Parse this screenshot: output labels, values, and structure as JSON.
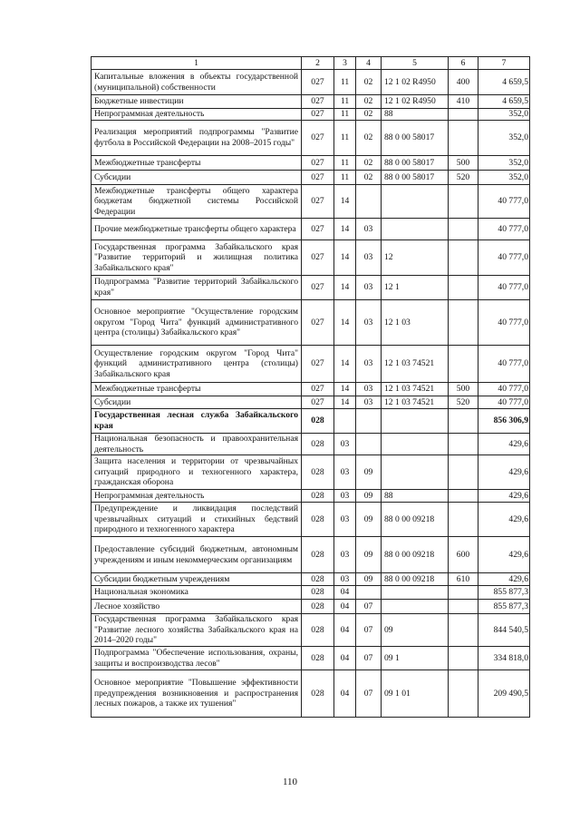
{
  "table": {
    "headers": [
      "1",
      "2",
      "3",
      "4",
      "5",
      "6",
      "7"
    ],
    "rows": [
      {
        "name": "Капитальные вложения в объекты государственной (муниципальной) собственности",
        "c2": "027",
        "c3": "11",
        "c4": "02",
        "c5": "12 1 02 R4950",
        "c6": "400",
        "c7": "4 659,5"
      },
      {
        "name": "Бюджетные инвестиции",
        "c2": "027",
        "c3": "11",
        "c4": "02",
        "c5": "12 1 02 R4950",
        "c6": "410",
        "c7": "4 659,5"
      },
      {
        "name": "Непрограммная деятельность",
        "c2": "027",
        "c3": "11",
        "c4": "02",
        "c5": "88",
        "c6": "",
        "c7": "352,0"
      },
      {
        "name": "Реализация мероприятий подпрограммы \"Развитие футбола в Российской Федерации на 2008–2015 годы\"",
        "c2": "027",
        "c3": "11",
        "c4": "02",
        "c5": "88 0 00 58017",
        "c6": "",
        "c7": "352,0"
      },
      {
        "name": "Межбюджетные трансферты",
        "c2": "027",
        "c3": "11",
        "c4": "02",
        "c5": "88 0 00 58017",
        "c6": "500",
        "c7": "352,0"
      },
      {
        "name": "Субсидии",
        "c2": "027",
        "c3": "11",
        "c4": "02",
        "c5": "88 0 00 58017",
        "c6": "520",
        "c7": "352,0"
      },
      {
        "name": "Межбюджетные трансферты общего характера бюджетам бюджетной системы Российской Федерации",
        "c2": "027",
        "c3": "14",
        "c4": "",
        "c5": "",
        "c6": "",
        "c7": "40 777,0"
      },
      {
        "name": "Прочие межбюджетные трансферты общего характера",
        "c2": "027",
        "c3": "14",
        "c4": "03",
        "c5": "",
        "c6": "",
        "c7": "40 777,0"
      },
      {
        "name": "Государственная программа Забайкальского края \"Развитие территорий и жилищная политика Забайкальского края\"",
        "c2": "027",
        "c3": "14",
        "c4": "03",
        "c5": "12",
        "c6": "",
        "c7": "40 777,0"
      },
      {
        "name": "Подпрограмма \"Развитие территорий Забайкальского края\"",
        "c2": "027",
        "c3": "14",
        "c4": "03",
        "c5": "12 1",
        "c6": "",
        "c7": "40 777,0"
      },
      {
        "name": "Основное мероприятие \"Осуществление городским округом \"Город Чита\" функций административного центра (столицы) Забайкальского края\"",
        "c2": "027",
        "c3": "14",
        "c4": "03",
        "c5": "12 1 03",
        "c6": "",
        "c7": "40 777,0"
      },
      {
        "name": "Осуществление городским округом \"Город Чита\" функций административного центра (столицы) Забайкальского края",
        "c2": "027",
        "c3": "14",
        "c4": "03",
        "c5": "12 1 03 74521",
        "c6": "",
        "c7": "40 777,0"
      },
      {
        "name": "Межбюджетные трансферты",
        "c2": "027",
        "c3": "14",
        "c4": "03",
        "c5": "12 1 03 74521",
        "c6": "500",
        "c7": "40 777,0"
      },
      {
        "name": "Субсидии",
        "c2": "027",
        "c3": "14",
        "c4": "03",
        "c5": "12 1 03 74521",
        "c6": "520",
        "c7": "40 777,0"
      },
      {
        "name": "Государственная лесная служба Забайкальского края",
        "c2": "028",
        "c3": "",
        "c4": "",
        "c5": "",
        "c6": "",
        "c7": "856 306,9",
        "bold": true
      },
      {
        "name": "Национальная безопасность и правоохранительная деятельность",
        "c2": "028",
        "c3": "03",
        "c4": "",
        "c5": "",
        "c6": "",
        "c7": "429,6"
      },
      {
        "name": "Защита населения и территории от чрезвычайных ситуаций природного и техногенного характера, гражданская оборона",
        "c2": "028",
        "c3": "03",
        "c4": "09",
        "c5": "",
        "c6": "",
        "c7": "429,6"
      },
      {
        "name": "Непрограммная деятельность",
        "c2": "028",
        "c3": "03",
        "c4": "09",
        "c5": "88",
        "c6": "",
        "c7": "429,6"
      },
      {
        "name": "Предупреждение и ликвидация последствий чрезвычайных ситуаций и стихийных бедствий природного и техногенного характера",
        "c2": "028",
        "c3": "03",
        "c4": "09",
        "c5": "88 0 00 09218",
        "c6": "",
        "c7": "429,6"
      },
      {
        "name": "Предоставление субсидий бюджетным, автономным учреждениям и иным некоммерческим организациям",
        "c2": "028",
        "c3": "03",
        "c4": "09",
        "c5": "88 0 00 09218",
        "c6": "600",
        "c7": "429,6"
      },
      {
        "name": "Субсидии бюджетным учреждениям",
        "c2": "028",
        "c3": "03",
        "c4": "09",
        "c5": "88 0 00 09218",
        "c6": "610",
        "c7": "429,6"
      },
      {
        "name": "Национальная экономика",
        "c2": "028",
        "c3": "04",
        "c4": "",
        "c5": "",
        "c6": "",
        "c7": "855 877,3"
      },
      {
        "name": "Лесное хозяйство",
        "c2": "028",
        "c3": "04",
        "c4": "07",
        "c5": "",
        "c6": "",
        "c7": "855 877,3"
      },
      {
        "name": "Государственная программа Забайкальского края \"Развитие лесного хозяйства Забайкальского края на 2014–2020 годы\"",
        "c2": "028",
        "c3": "04",
        "c4": "07",
        "c5": "09",
        "c6": "",
        "c7": "844 540,5"
      },
      {
        "name": "Подпрограмма \"Обеспечение использования, охраны, защиты и воспроизводства лесов\"",
        "c2": "028",
        "c3": "04",
        "c4": "07",
        "c5": "09 1",
        "c6": "",
        "c7": "334 818,0"
      },
      {
        "name": "Основное мероприятие \"Повышение эффективности предупреждения возникновения и распространения лесных пожаров, а также их тушения\"",
        "c2": "028",
        "c3": "04",
        "c4": "07",
        "c5": "09 1 01",
        "c6": "",
        "c7": "209 490,5"
      }
    ]
  },
  "page_number": "110"
}
